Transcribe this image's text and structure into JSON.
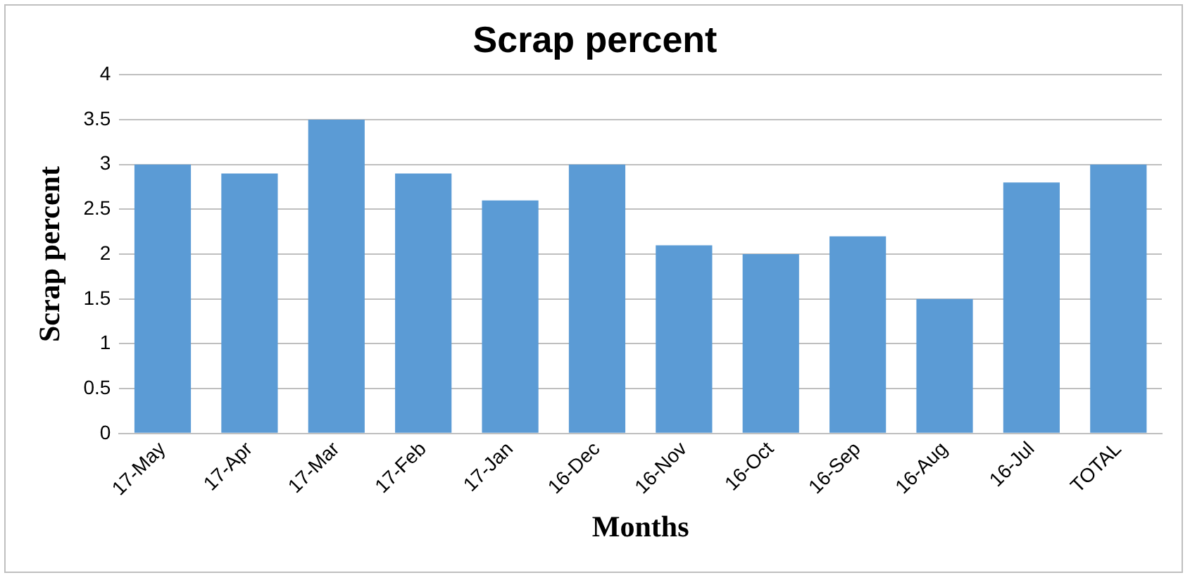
{
  "chart_data": {
    "type": "bar",
    "title": "Scrap percent",
    "xlabel": "Months",
    "ylabel": "Scrap percent",
    "categories": [
      "17-May",
      "17-Apr",
      "17-Mar",
      "17-Feb",
      "17-Jan",
      "16-Dec",
      "16-Nov",
      "16-Oct",
      "16-Sep",
      "16-Aug",
      "16-Jul",
      "TOTAL"
    ],
    "values": [
      3,
      2.9,
      3.5,
      2.9,
      2.6,
      3,
      2.1,
      2,
      2.2,
      1.5,
      2.8,
      3
    ],
    "color": "#5b9bd5",
    "ylim": [
      0,
      4
    ],
    "yticks": [
      0,
      0.5,
      1,
      1.5,
      2,
      2.5,
      3,
      3.5,
      4
    ],
    "grid": "y",
    "legend": false
  }
}
